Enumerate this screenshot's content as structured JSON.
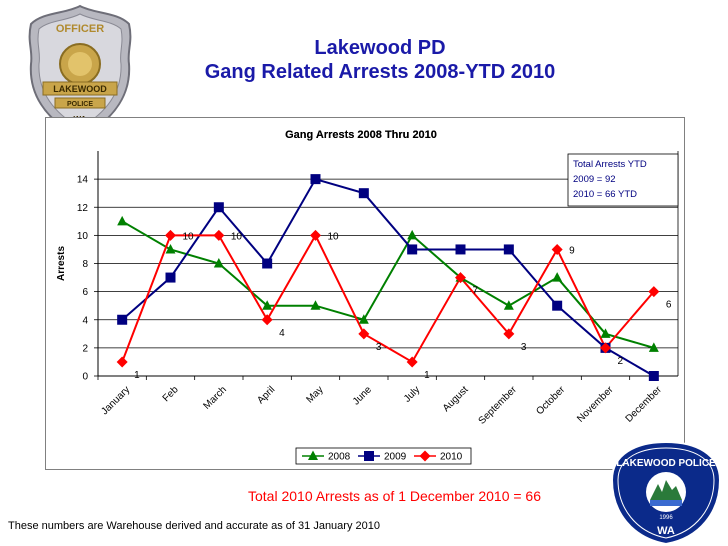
{
  "slide": {
    "title_line1": "Lakewood PD",
    "title_line2": "Gang Related Arrests 2008-YTD 2010",
    "total_note": "Total 2010 Arrests as of 1 December 2010 = 66",
    "footer_note": "These numbers are Warehouse derived and accurate as of  31 January 2010"
  },
  "badge": {
    "top_text": "OFFICER",
    "band1": "LAKEWOOD",
    "band2": "POLICE",
    "state": "WA"
  },
  "patch": {
    "top_text": "LAKEWOOD POLICE",
    "state": "WA",
    "year": "1996"
  },
  "chart_data": {
    "type": "line",
    "title": "Gang Arrests 2008 Thru 2010",
    "ylabel": "Arrests",
    "xlabel": "",
    "ylim": [
      0,
      16
    ],
    "yticks": [
      0,
      2,
      4,
      6,
      8,
      10,
      12,
      14
    ],
    "top_tick_partial": "16",
    "categories": [
      "January",
      "Feb",
      "March",
      "April",
      "May",
      "June",
      "July",
      "August",
      "September",
      "October",
      "November",
      "December"
    ],
    "series": [
      {
        "name": "2008",
        "color": "#008000",
        "marker": "triangle",
        "values": [
          11,
          9,
          8,
          5,
          5,
          4,
          10,
          7,
          5,
          7,
          3,
          2
        ]
      },
      {
        "name": "2009",
        "color": "#000080",
        "marker": "square",
        "values": [
          4,
          7,
          12,
          8,
          14,
          13,
          9,
          9,
          9,
          5,
          2,
          0
        ]
      },
      {
        "name": "2010",
        "color": "#ff0000",
        "marker": "diamond",
        "values": [
          1,
          10,
          10,
          4,
          10,
          3,
          1,
          7,
          3,
          9,
          2,
          6
        ]
      }
    ],
    "data_labels_series": "2010",
    "data_labels": [
      {
        "index": 0,
        "text": "1"
      },
      {
        "index": 1,
        "text": "10"
      },
      {
        "index": 2,
        "text": "10"
      },
      {
        "index": 3,
        "text": "4"
      },
      {
        "index": 4,
        "text": "10"
      },
      {
        "index": 5,
        "text": "3"
      },
      {
        "index": 6,
        "text": "1"
      },
      {
        "index": 7,
        "text": "7"
      },
      {
        "index": 8,
        "text": "3"
      },
      {
        "index": 9,
        "text": "9"
      },
      {
        "index": 10,
        "text": "2"
      },
      {
        "index": 11,
        "text": "6"
      }
    ],
    "annotation": {
      "lines": [
        "Total Arrests YTD",
        "2009 = 92",
        "2010 = 66 YTD"
      ],
      "color": "#000080"
    },
    "legend_position": "bottom",
    "grid": true
  }
}
